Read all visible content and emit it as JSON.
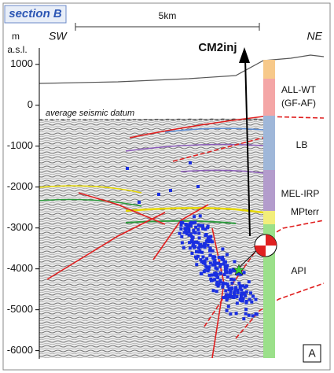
{
  "chart_data": {
    "type": "section",
    "title": "section B",
    "scale_label": "5km",
    "ylabel_lines": [
      "m",
      "a.s.l."
    ],
    "left_label": "SW",
    "right_label": "NE",
    "well_label": "CM2inj",
    "datum_label": "average seismic datum",
    "panel_label": "A",
    "ylim": [
      -6200,
      1400
    ],
    "yticks": [
      1000,
      0,
      -1000,
      -2000,
      -3000,
      -4000,
      -5000,
      -6000
    ],
    "formations": [
      {
        "name": "ALL-WT",
        "note": "(GF-AF)",
        "color": "#f4a6a6"
      },
      {
        "name": "LB",
        "color": "#9fb7d9"
      },
      {
        "name": "MEL-IRP",
        "color": "#b39ccc"
      },
      {
        "name": "MPterr",
        "color": "#f2ee7a"
      },
      {
        "name": "API",
        "color": "#9be08a"
      }
    ]
  }
}
